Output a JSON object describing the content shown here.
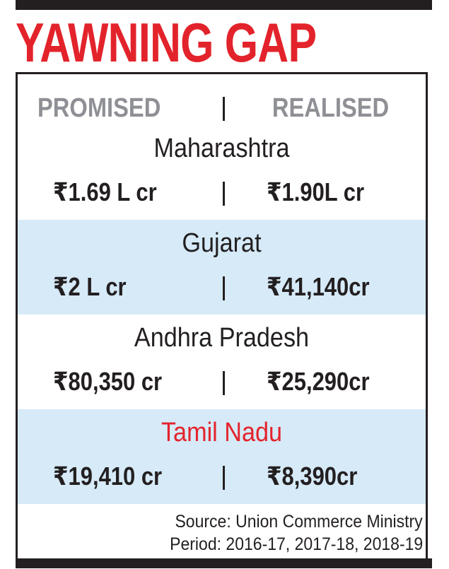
{
  "headline": "YAWNING GAP",
  "columns": {
    "promised": "PROMISED",
    "realised": "REALISED"
  },
  "states": [
    {
      "name": "Maharashtra",
      "promised": "₹1.69 L cr",
      "realised": "₹1.90L cr"
    },
    {
      "name": "Gujarat",
      "promised": "₹2 L cr",
      "realised": "₹41,140cr"
    },
    {
      "name": "Andhra Pradesh",
      "promised": "₹80,350 cr",
      "realised": "₹25,290cr"
    },
    {
      "name": "Tamil Nadu",
      "promised": "₹19,410 cr",
      "realised": "₹8,390cr"
    }
  ],
  "footer": {
    "source": "Source: Union Commerce Ministry",
    "period": "Period: 2016-17, 2017-18, 2018-19"
  },
  "colors": {
    "headline": "#e3232b",
    "highlight_state": "#e3232b",
    "shade": "#d6eaf8",
    "column_head": "#8e9095",
    "rule": "#231f20"
  }
}
